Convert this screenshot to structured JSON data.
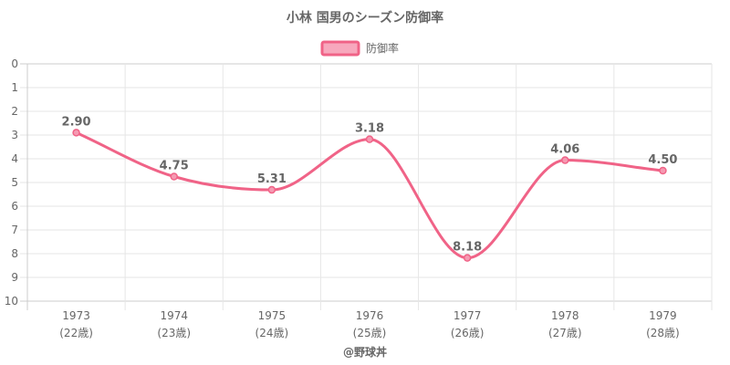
{
  "chart_data": {
    "type": "line",
    "title": "小林 国男のシーズン防御率",
    "legend": {
      "position": "top",
      "entries": [
        "防御率"
      ]
    },
    "categories": [
      "1973",
      "1974",
      "1975",
      "1976",
      "1977",
      "1978",
      "1979"
    ],
    "category_sublabels": [
      "(22歳)",
      "(23歳)",
      "(24歳)",
      "(25歳)",
      "(26歳)",
      "(27歳)",
      "(28歳)"
    ],
    "series": [
      {
        "name": "防御率",
        "values": [
          2.9,
          4.75,
          5.31,
          3.18,
          8.18,
          4.06,
          4.5
        ],
        "labels": [
          "2.90",
          "4.75",
          "5.31",
          "3.18",
          "8.18",
          "4.06",
          "4.50"
        ]
      }
    ],
    "y_ticks": [
      "0",
      "1",
      "2",
      "3",
      "4",
      "5",
      "6",
      "7",
      "8",
      "9",
      "10"
    ],
    "ylim": [
      0,
      10
    ],
    "y_reversed": true,
    "grid": true,
    "colors": {
      "line": "#f06387",
      "point_fill": "#f59ab2",
      "legend_fill": "#f7a8bd",
      "grid": "#e6e6e6",
      "text": "#666666"
    }
  },
  "footer": "@野球丼"
}
